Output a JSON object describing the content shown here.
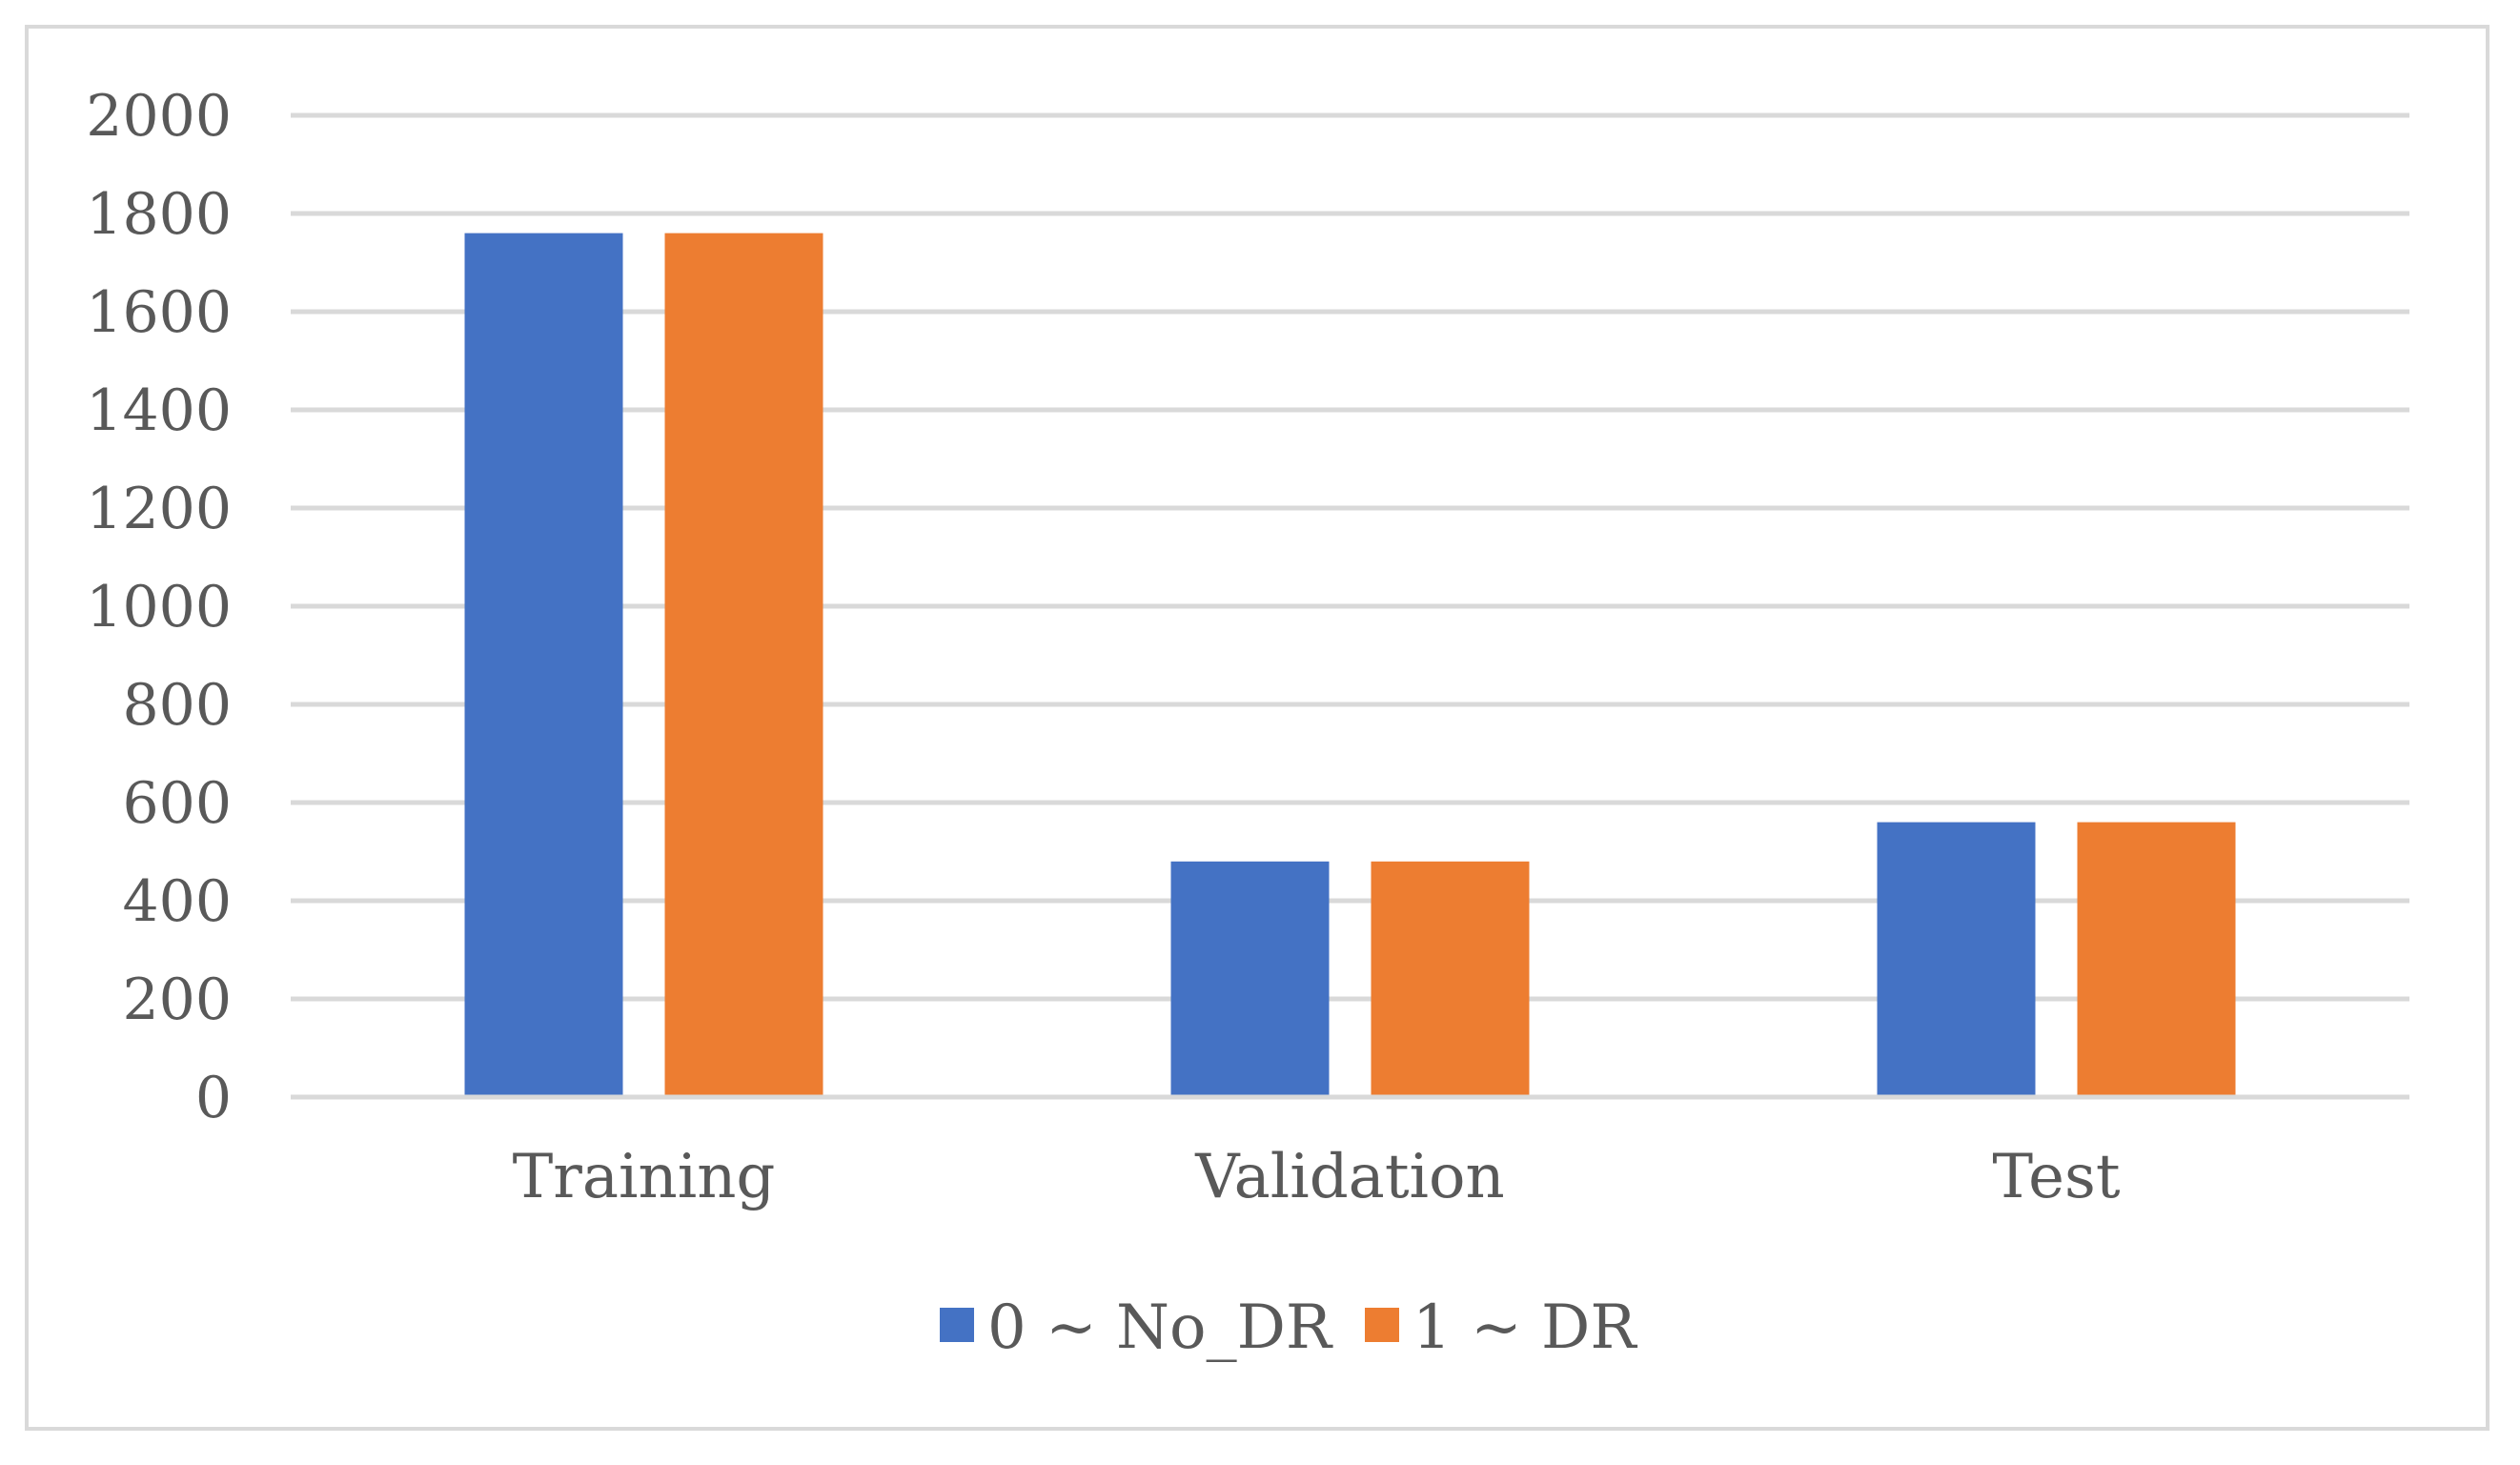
{
  "chart_data": {
    "type": "bar",
    "categories": [
      "Training",
      "Validation",
      "Test"
    ],
    "series": [
      {
        "name": "0 ~ No_DR",
        "values": [
          1760,
          480,
          560
        ],
        "color": "#4472c4"
      },
      {
        "name": "1 ~ DR",
        "values": [
          1760,
          480,
          560
        ],
        "color": "#ed7d31"
      }
    ],
    "ylim": [
      0,
      2000
    ],
    "yticks": [
      0,
      200,
      400,
      600,
      800,
      1000,
      1200,
      1400,
      1600,
      1800,
      2000
    ],
    "grid": true,
    "gridColor": "#d9d9d9",
    "legend_position": "bottom",
    "title": "",
    "xlabel": "",
    "ylabel": ""
  }
}
